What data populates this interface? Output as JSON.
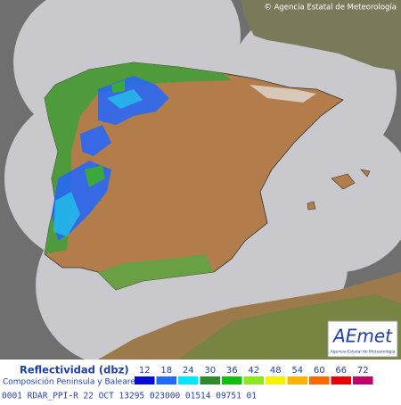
{
  "header": {
    "copyright": "© Agencia Estatal de Meteorología"
  },
  "logo": {
    "brand": "AEmet",
    "caption": "Agencia Estatal de Meteorología"
  },
  "legend": {
    "title": "Reflectividad (dbz)",
    "subtitle": "Composición Peninsula y Baleares",
    "items": [
      {
        "value": 12,
        "color": "#0a0ad8"
      },
      {
        "value": 18,
        "color": "#1e6cff"
      },
      {
        "value": 24,
        "color": "#00e6ff"
      },
      {
        "value": 30,
        "color": "#2e8a2e"
      },
      {
        "value": 36,
        "color": "#10c010"
      },
      {
        "value": 42,
        "color": "#8ee81e"
      },
      {
        "value": 48,
        "color": "#f4f400"
      },
      {
        "value": 54,
        "color": "#ffb400"
      },
      {
        "value": 60,
        "color": "#ff6a00"
      },
      {
        "value": 66,
        "color": "#e80000"
      },
      {
        "value": 72,
        "color": "#c0006a"
      }
    ]
  },
  "footer": {
    "text": "0001 RDAR_PPI-R  22 OCT 13295 023000 01514 09751 01"
  }
}
